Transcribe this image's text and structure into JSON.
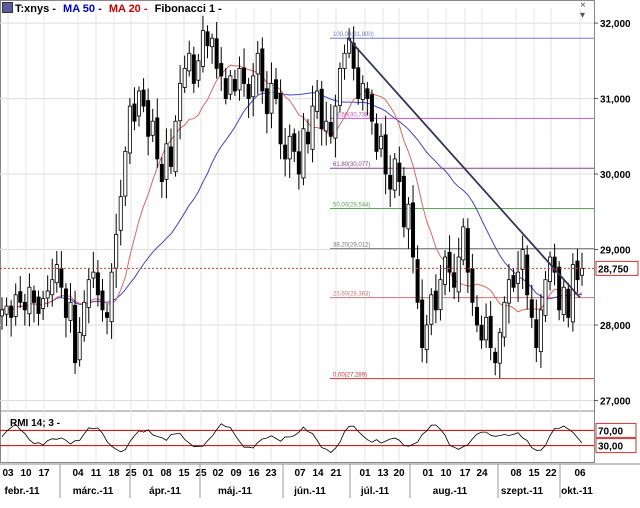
{
  "legend": {
    "ticker": "T:xnys -",
    "ma50": "MA 50 -",
    "ma20": "MA 20 -",
    "fib": "Fibonacci 1 -",
    "colors": {
      "ticker": "#000000",
      "ma50": "#0000cc",
      "ma20": "#cc0000",
      "fib": "#000000"
    }
  },
  "window_icons": {
    "close": "×",
    "menu": "▾"
  },
  "rmi": {
    "label": "RMI 14; 3 -",
    "levels": [
      70,
      30
    ],
    "level_labels": [
      "70,00",
      "30,00"
    ],
    "color_lines": "#cc0000"
  },
  "chart_data": {
    "type": "candlestick",
    "y_axis": {
      "ticks": [
        27000,
        28000,
        29000,
        30000,
        31000,
        32000
      ],
      "tick_labels": [
        "27,000",
        "28,000",
        "29,000",
        "30,000",
        "31,000",
        "32,000"
      ],
      "range": [
        26900,
        32200
      ]
    },
    "last_price": {
      "value": 28.75,
      "label": "28,750"
    },
    "x_axis": {
      "day_labels": [
        "03",
        "10",
        "17",
        "04",
        "11",
        "18",
        "25",
        "01",
        "08",
        "15",
        "25",
        "02",
        "09",
        "16",
        "23",
        "07",
        "14",
        "21",
        "01",
        "13",
        "20",
        "01",
        "10",
        "17",
        "24",
        "08",
        "15",
        "22",
        "06"
      ],
      "month_labels": [
        "febr.-11",
        "márc.-11",
        "ápr.-11",
        "máj.-11",
        "jún.-11",
        "júl.-11",
        "aug.-11",
        "szept.-11",
        "okt.-11"
      ]
    },
    "fibonacci_levels": [
      {
        "label": "100,00(31,800)",
        "value": 31800,
        "color": "#7777cc"
      },
      {
        "label": "78,60(30,738)",
        "value": 30738,
        "color": "#cc55cc"
      },
      {
        "label": "61,80(30,077)",
        "value": 30077,
        "color": "#884488"
      },
      {
        "label": "50,00(29,544)",
        "value": 29544,
        "color": "#55aa55"
      },
      {
        "label": "38,20(29,012)",
        "value": 29012,
        "color": "#777777"
      },
      {
        "label": "23,60(28,363)",
        "value": 28363,
        "color": "#cc7777"
      },
      {
        "label": "0,00(27,289)",
        "value": 27289,
        "color": "#cc3333"
      }
    ],
    "trend_line": {
      "from": 31800,
      "to": 28363
    },
    "price_closes": [
      28200,
      28250,
      28100,
      28400,
      28300,
      28200,
      28500,
      28300,
      28150,
      28350,
      28450,
      28600,
      28800,
      28500,
      28100,
      28300,
      27500,
      27900,
      28300,
      28600,
      28700,
      28400,
      28200,
      28100,
      28700,
      29200,
      29700,
      30300,
      30900,
      30700,
      31100,
      30900,
      30500,
      30700,
      30200,
      29900,
      30400,
      30100,
      30700,
      31200,
      31400,
      31600,
      31200,
      31500,
      31900,
      31700,
      31800,
      31400,
      31300,
      31000,
      31300,
      31100,
      31400,
      31200,
      31000,
      31300,
      31600,
      31100,
      30800,
      31200,
      31000,
      30400,
      30200,
      30500,
      30300,
      30000,
      30600,
      30400,
      30900,
      31100,
      30600,
      30700,
      30500,
      30900,
      31400,
      31600,
      31800,
      31400,
      31000,
      31200,
      31000,
      30700,
      30300,
      30500,
      30000,
      29800,
      30200,
      29900,
      29300,
      29600,
      28900,
      28300,
      27700,
      28000,
      28400,
      28200,
      28600,
      28900,
      28700,
      28500,
      28900,
      29300,
      28700,
      28300,
      28000,
      27800,
      28100,
      27700,
      27500,
      27900,
      28300,
      28600,
      28500,
      28700,
      29000,
      28400,
      28100,
      27700,
      28200,
      28600,
      28900,
      28700,
      28200,
      28500,
      28100,
      28800,
      28600,
      28750
    ]
  }
}
